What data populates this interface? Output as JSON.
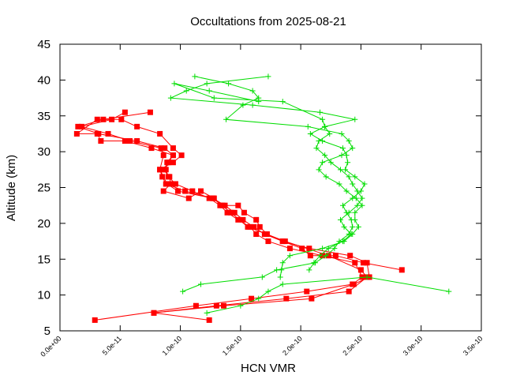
{
  "chart_data": {
    "type": "line",
    "title": "Occultations from 2025-08-21",
    "xlabel": "HCN VMR",
    "ylabel": "Altitude (km)",
    "xlim": [
      0,
      3.5e-10
    ],
    "ylim": [
      5,
      45
    ],
    "xtick_labels": [
      "0.0e+00",
      "5.0e-11",
      "1.0e-10",
      "1.5e-10",
      "2.0e-10",
      "2.5e-10",
      "3.0e-10",
      "3.5e-10"
    ],
    "xtick_values": [
      0,
      5e-11,
      1e-10,
      1.5e-10,
      2e-10,
      2.5e-10,
      3e-10,
      3.5e-10
    ],
    "ytick_labels": [
      "5",
      "10",
      "15",
      "20",
      "25",
      "30",
      "35",
      "40",
      "45"
    ],
    "ytick_values": [
      5,
      10,
      15,
      20,
      25,
      30,
      35,
      40,
      45
    ],
    "grid": false,
    "series": [
      {
        "color": "#ff0000",
        "marker": "square",
        "lines": [
          [
            [
              2.9e-11,
              6.5
            ],
            [
              1.13e-10,
              8.5
            ],
            [
              1.59e-10,
              9.5
            ],
            [
              2.05e-10,
              10.5
            ],
            [
              2.43e-10,
              11.5
            ],
            [
              2.51e-10,
              12.5
            ],
            [
              2.45e-10,
              14.5
            ],
            [
              2.18e-10,
              15.5
            ],
            [
              1.91e-10,
              16.5
            ],
            [
              1.73e-10,
              17.5
            ],
            [
              1.63e-10,
              18.5
            ],
            [
              1.58e-10,
              19.5
            ],
            [
              1.48e-10,
              20.5
            ],
            [
              1.39e-10,
              21.5
            ],
            [
              1.33e-10,
              22.5
            ],
            [
              1.24e-10,
              23.5
            ],
            [
              1.1e-10,
              24.5
            ],
            [
              9.6e-11,
              25.5
            ],
            [
              9e-11,
              26.5
            ],
            [
              8.8e-11,
              27.5
            ],
            [
              8.9e-11,
              28.5
            ],
            [
              9.4e-11,
              29.5
            ],
            [
              8.7e-11,
              30.5
            ],
            [
              6.4e-11,
              31.5
            ],
            [
              3.2e-11,
              32.5
            ],
            [
              1.5e-11,
              33.5
            ],
            [
              3.6e-11,
              34.5
            ],
            [
              7.5e-11,
              35.5
            ]
          ],
          [
            [
              1.24e-10,
              6.5
            ],
            [
              7.8e-11,
              7.5
            ],
            [
              1.3e-10,
              8.5
            ],
            [
              1.88e-10,
              9.5
            ],
            [
              2.4e-10,
              10.5
            ],
            [
              2.55e-10,
              12.5
            ],
            [
              2.5e-10,
              13.5
            ],
            [
              2.23e-10,
              15.5
            ],
            [
              1.87e-10,
              17.5
            ],
            [
              1.56e-10,
              19.5
            ],
            [
              1.42e-10,
              21.5
            ],
            [
              1.27e-10,
              23.5
            ],
            [
              9.8e-11,
              24.5
            ],
            [
              8.9e-11,
              25.5
            ],
            [
              8.3e-11,
              27.5
            ],
            [
              8.6e-11,
              29.5
            ],
            [
              8.4e-11,
              30.5
            ],
            [
              5.8e-11,
              31.5
            ],
            [
              4e-11,
              32.5
            ],
            [
              1.8e-11,
              33.5
            ],
            [
              4.3e-11,
              34.5
            ],
            [
              5.4e-11,
              35.5
            ]
          ],
          [
            [
              7.8e-11,
              7.5
            ],
            [
              1.36e-10,
              8.5
            ],
            [
              2.09e-10,
              9.5
            ],
            [
              2.44e-10,
              11.5
            ],
            [
              2.57e-10,
              12.5
            ],
            [
              2.55e-10,
              14.5
            ],
            [
              2.41e-10,
              15.5
            ],
            [
              2.07e-10,
              16.5
            ],
            [
              1.85e-10,
              17.5
            ],
            [
              1.7e-10,
              18.5
            ],
            [
              1.61e-10,
              19.5
            ],
            [
              1.52e-10,
              20.5
            ],
            [
              1.45e-10,
              21.5
            ],
            [
              1.37e-10,
              22.5
            ],
            [
              1.27e-10,
              23.5
            ],
            [
              1.04e-10,
              24.5
            ],
            [
              8.8e-11,
              25.5
            ],
            [
              8.5e-11,
              26.5
            ],
            [
              8.3e-11,
              27.5
            ],
            [
              9.4e-11,
              28.5
            ],
            [
              1.01e-10,
              29.5
            ],
            [
              9.4e-11,
              30.5
            ],
            [
              8.3e-11,
              32.5
            ],
            [
              6.4e-11,
              33.5
            ],
            [
              5.1e-11,
              34.5
            ],
            [
              3.1e-11,
              34.5
            ],
            [
              1.4e-11,
              32.5
            ],
            [
              3.1e-11,
              32.5
            ],
            [
              3.4e-11,
              31.5
            ],
            [
              5.4e-11,
              31.5
            ],
            [
              7.6e-11,
              30.5
            ],
            [
              9.4e-11,
              29.5
            ],
            [
              9e-11,
              28.5
            ],
            [
              8.6e-11,
              27.5
            ],
            [
              9.1e-11,
              26.5
            ],
            [
              9.2e-11,
              25.5
            ],
            [
              8.6e-11,
              24.5
            ],
            [
              1.07e-10,
              23.5
            ],
            [
              1.17e-10,
              24.5
            ],
            [
              1.28e-10,
              23.5
            ],
            [
              1.35e-10,
              22.5
            ],
            [
              1.48e-10,
              22.5
            ],
            [
              1.53e-10,
              21.5
            ],
            [
              1.63e-10,
              20.5
            ],
            [
              1.66e-10,
              19.5
            ],
            [
              1.72e-10,
              18.5
            ],
            [
              1.85e-10,
              17.5
            ],
            [
              2.01e-10,
              16.5
            ],
            [
              2.08e-10,
              15.5
            ],
            [
              2.29e-10,
              15.5
            ],
            [
              2.52e-10,
              14.5
            ],
            [
              2.84e-10,
              13.5
            ]
          ]
        ]
      },
      {
        "color": "#00dd00",
        "marker": "plus",
        "lines": [
          [
            [
              1.22e-10,
              7.5
            ],
            [
              1.5e-10,
              8.5
            ],
            [
              1.65e-10,
              9.5
            ],
            [
              1.73e-10,
              10.5
            ],
            [
              1.85e-10,
              11.5
            ],
            [
              2.55e-10,
              12.5
            ],
            [
              3.23e-10,
              10.5
            ]
          ],
          [
            [
              1.12e-10,
              40.5
            ],
            [
              1.4e-10,
              39.5
            ],
            [
              1.6e-10,
              38.5
            ],
            [
              1.65e-10,
              37.5
            ],
            [
              1.52e-10,
              36.5
            ],
            [
              1.38e-10,
              34.5
            ],
            [
              2.06e-10,
              33.5
            ],
            [
              2.34e-10,
              32.5
            ],
            [
              2.4e-10,
              31.5
            ],
            [
              2.43e-10,
              30.5
            ],
            [
              2.34e-10,
              29.5
            ],
            [
              2.18e-10,
              28.5
            ],
            [
              2.15e-10,
              27.5
            ],
            [
              2.21e-10,
              26.5
            ],
            [
              2.32e-10,
              25.5
            ],
            [
              2.38e-10,
              24.5
            ],
            [
              2.46e-10,
              23.5
            ],
            [
              2.51e-10,
              22.5
            ],
            [
              2.45e-10,
              21.5
            ],
            [
              2.45e-10,
              20.5
            ],
            [
              2.48e-10,
              19.5
            ],
            [
              2.43e-10,
              18.5
            ],
            [
              2.36e-10,
              17.5
            ],
            [
              2.18e-10,
              16.5
            ],
            [
              1.91e-10,
              15.5
            ],
            [
              1.85e-10,
              14.5
            ],
            [
              1.84e-10,
              13.5
            ],
            [
              1.83e-10,
              12.5
            ]
          ],
          [
            [
              1.73e-10,
              40.5
            ],
            [
              1.22e-10,
              39.5
            ],
            [
              1.05e-10,
              38.5
            ],
            [
              9.2e-11,
              37.5
            ],
            [
              1.6e-10,
              36.5
            ],
            [
              2.16e-10,
              35.5
            ],
            [
              2.45e-10,
              34.5
            ],
            [
              2.2e-10,
              33.5
            ],
            [
              2.08e-10,
              32.5
            ],
            [
              2.18e-10,
              31.5
            ],
            [
              2.35e-10,
              30.5
            ],
            [
              2.38e-10,
              29.5
            ],
            [
              2.39e-10,
              28.5
            ],
            [
              2.37e-10,
              27.5
            ],
            [
              2.45e-10,
              26.5
            ],
            [
              2.53e-10,
              25.5
            ],
            [
              2.5e-10,
              24.5
            ],
            [
              2.43e-10,
              23.5
            ],
            [
              2.35e-10,
              22.5
            ],
            [
              2.38e-10,
              21.5
            ],
            [
              2.42e-10,
              20.5
            ],
            [
              2.43e-10,
              19.5
            ],
            [
              2.4e-10,
              18.5
            ],
            [
              2.32e-10,
              17.5
            ],
            [
              2.28e-10,
              16.5
            ],
            [
              2.21e-10,
              15.5
            ],
            [
              2.12e-10,
              14.5
            ],
            [
              1.8e-10,
              13.5
            ],
            [
              1.68e-10,
              12.5
            ],
            [
              1.17e-10,
              11.5
            ],
            [
              1.02e-10,
              10.5
            ]
          ],
          [
            [
              1.65e-10,
              37.0
            ],
            [
              1.24e-10,
              38.5
            ],
            [
              9.5e-11,
              39.5
            ],
            [
              1.28e-10,
              37.5
            ],
            [
              1.85e-10,
              37.0
            ],
            [
              2.18e-10,
              34.5
            ],
            [
              2.2e-10,
              33.5
            ],
            [
              2.24e-10,
              32.5
            ],
            [
              2.15e-10,
              31.5
            ],
            [
              2.13e-10,
              30.5
            ],
            [
              2.2e-10,
              29.5
            ],
            [
              2.25e-10,
              28.5
            ],
            [
              2.33e-10,
              27.5
            ],
            [
              2.4e-10,
              26.5
            ],
            [
              2.43e-10,
              25.5
            ],
            [
              2.47e-10,
              24.5
            ],
            [
              2.51e-10,
              23.5
            ],
            [
              2.47e-10,
              22.5
            ],
            [
              2.4e-10,
              21.5
            ],
            [
              2.33e-10,
              20.5
            ],
            [
              2.36e-10,
              19.5
            ],
            [
              2.42e-10,
              18.5
            ],
            [
              2.35e-10,
              17.5
            ],
            [
              2.23e-10,
              16.5
            ],
            [
              2.16e-10,
              15.5
            ],
            [
              2.11e-10,
              14.5
            ],
            [
              2.07e-10,
              13.5
            ]
          ]
        ]
      }
    ]
  }
}
